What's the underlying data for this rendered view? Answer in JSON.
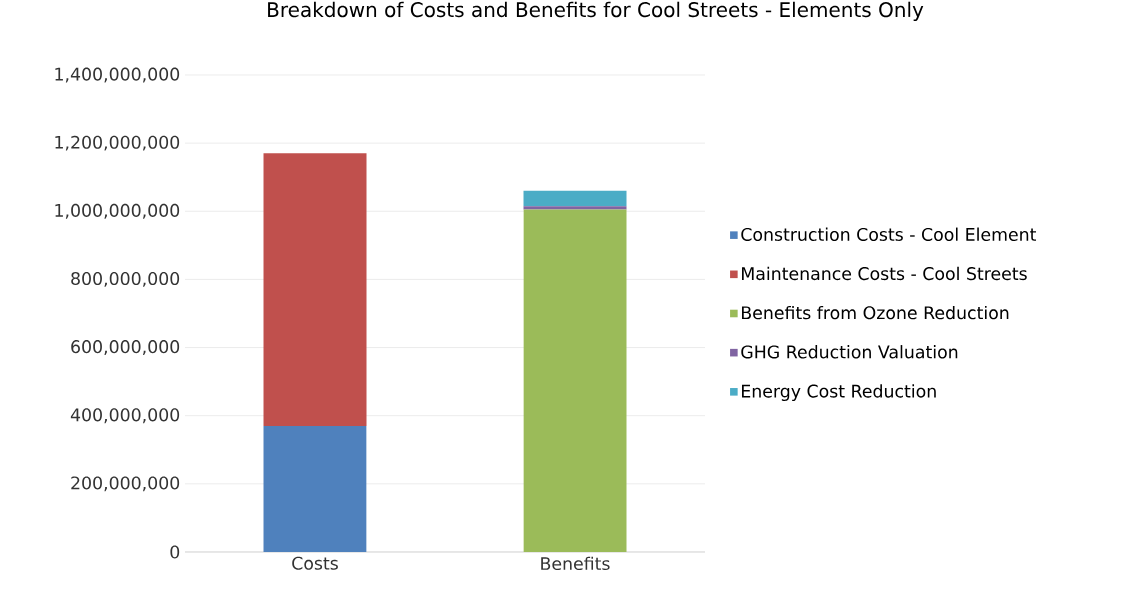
{
  "chart_data": {
    "type": "bar",
    "title": "Breakdown of Costs and Benefits for Cool Streets - Elements Only",
    "categories": [
      "Costs",
      "Benefits"
    ],
    "stacked": true,
    "series": [
      {
        "name": "Construction Costs - Cool Element",
        "color": "#4f81bd",
        "values": [
          370000000,
          null
        ]
      },
      {
        "name": "Maintenance Costs - Cool Streets",
        "color": "#c0504d",
        "values": [
          800000000,
          null
        ]
      },
      {
        "name": "Benefits from Ozone Reduction",
        "color": "#9bbb59",
        "values": [
          null,
          1005000000
        ]
      },
      {
        "name": "GHG Reduction Valuation",
        "color": "#8064a2",
        "values": [
          null,
          10000000
        ]
      },
      {
        "name": "Energy Cost Reduction",
        "color": "#4bacc6",
        "values": [
          null,
          45000000
        ]
      }
    ],
    "ylim": [
      0,
      1400000000
    ],
    "yticks": [
      {
        "value": 0,
        "label": "0"
      },
      {
        "value": 200000000,
        "label": "200,000,000"
      },
      {
        "value": 400000000,
        "label": "400,000,000"
      },
      {
        "value": 600000000,
        "label": "600,000,000"
      },
      {
        "value": 800000000,
        "label": "800,000,000"
      },
      {
        "value": 1000000000,
        "label": "1,000,000,000"
      },
      {
        "value": 1200000000,
        "label": "1,200,000,000"
      },
      {
        "value": 1400000000,
        "label": "1,400,000,000"
      }
    ],
    "grid": "y",
    "legend": "right"
  }
}
